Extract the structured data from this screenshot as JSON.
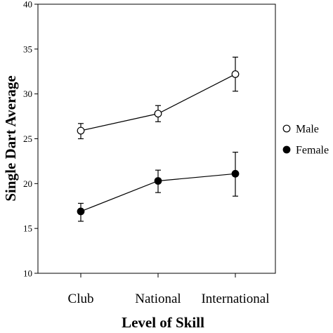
{
  "chart_data": {
    "type": "line",
    "xlabel": "Level of Skill",
    "ylabel": "Single Dart Average",
    "categories": [
      "Club",
      "National",
      "International"
    ],
    "ylim": [
      10,
      40
    ],
    "yticks": [
      10,
      15,
      20,
      25,
      30,
      35,
      40
    ],
    "grid": false,
    "legend_position": "right",
    "series": [
      {
        "name": "Male",
        "marker": "open-circle",
        "color": "#000000",
        "values": [
          25.9,
          27.8,
          32.2
        ],
        "error_low": [
          25.0,
          26.9,
          30.3
        ],
        "error_high": [
          26.7,
          28.7,
          34.1
        ]
      },
      {
        "name": "Female",
        "marker": "filled-circle",
        "color": "#000000",
        "values": [
          16.9,
          20.3,
          21.1
        ],
        "error_low": [
          15.8,
          19.0,
          18.6
        ],
        "error_high": [
          17.8,
          21.5,
          23.5
        ]
      }
    ]
  }
}
